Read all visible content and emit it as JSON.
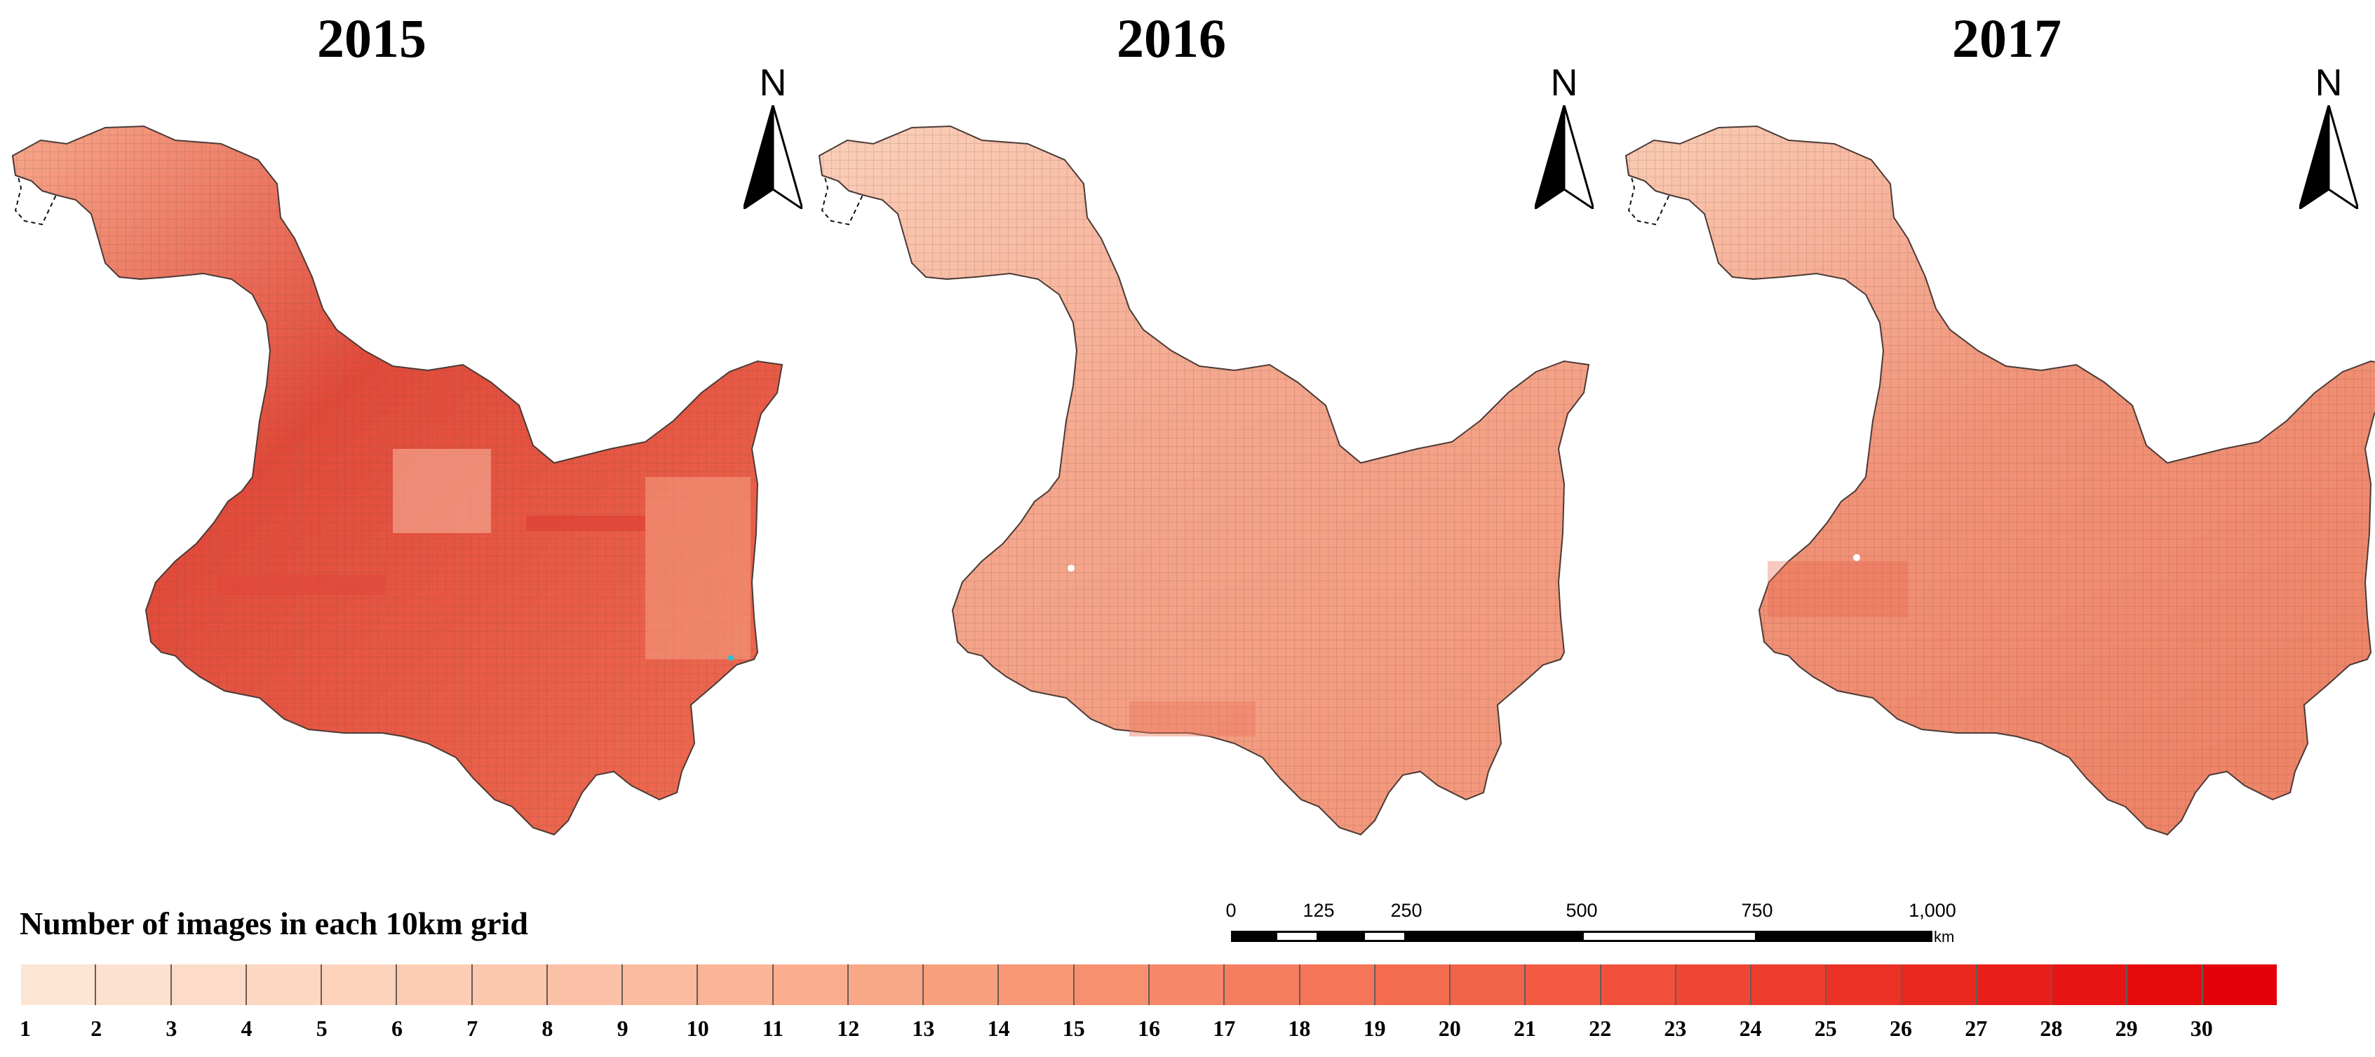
{
  "maps": [
    {
      "year": "2015",
      "shade_level": 22
    },
    {
      "year": "2016",
      "shade_level": 14
    },
    {
      "year": "2017",
      "shade_level": 16
    }
  ],
  "north_arrow": {
    "label": "N"
  },
  "legend": {
    "title": "Number of images in each 10km grid",
    "labels": [
      "1",
      "2",
      "3",
      "4",
      "5",
      "6",
      "7",
      "8",
      "9",
      "10",
      "11",
      "12",
      "13",
      "14",
      "15",
      "16",
      "17",
      "18",
      "19",
      "20",
      "21",
      "22",
      "23",
      "24",
      "25",
      "26",
      "27",
      "28",
      "29",
      "30"
    ],
    "colors": [
      "#fde5d4",
      "#fde1cf",
      "#fcdcc9",
      "#fcd7c2",
      "#fcd2bb",
      "#fccdb4",
      "#fbc7ad",
      "#fbc1a6",
      "#fbbb9e",
      "#fab597",
      "#faae8f",
      "#f9a887",
      "#f9a07f",
      "#f89877",
      "#f88f6f",
      "#f78768",
      "#f67e60",
      "#f57558",
      "#f46c50",
      "#f36349",
      "#f25a42",
      "#f1503b",
      "#ef4634",
      "#ee3c2d",
      "#ec3226",
      "#ea2820",
      "#e91e1a",
      "#e71414",
      "#e50a0e",
      "#e30008"
    ]
  },
  "scale_bar": {
    "ticks": [
      {
        "label": "0",
        "km": 0
      },
      {
        "label": "125",
        "km": 125
      },
      {
        "label": "250",
        "km": 250
      },
      {
        "label": "500",
        "km": 500
      },
      {
        "label": "750",
        "km": 750
      },
      {
        "label": "1,000",
        "km": 1000
      }
    ],
    "unit": "km"
  }
}
